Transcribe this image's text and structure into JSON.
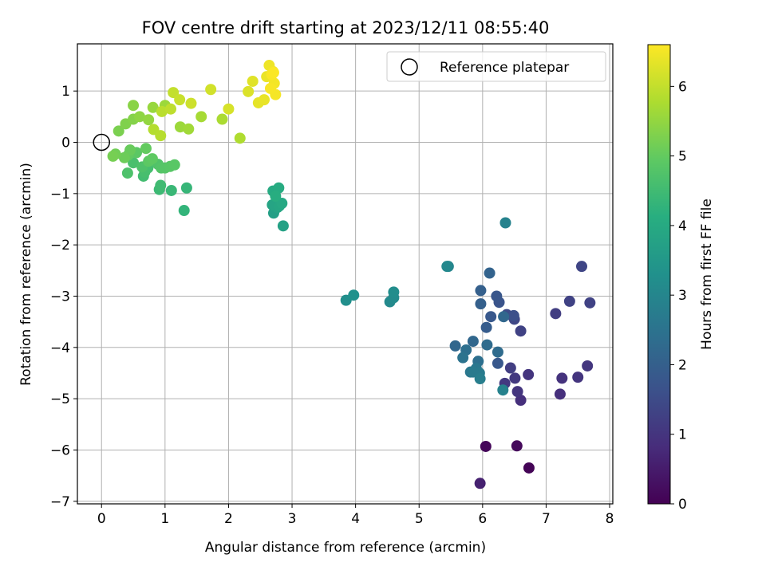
{
  "chart_data": {
    "type": "scatter",
    "title": "FOV centre drift starting at 2023/12/11 08:55:40",
    "xlabel": "Angular distance from reference (arcmin)",
    "ylabel": "Rotation from reference (arcmin)",
    "xlim": [
      -0.38,
      8.05
    ],
    "ylim": [
      -7.05,
      1.92
    ],
    "xticks": [
      0,
      1,
      2,
      3,
      4,
      5,
      6,
      7,
      8
    ],
    "yticks": [
      -7,
      -6,
      -5,
      -4,
      -3,
      -2,
      -1,
      0,
      1
    ],
    "xtick_labels": [
      "0",
      "1",
      "2",
      "3",
      "4",
      "5",
      "6",
      "7",
      "8"
    ],
    "ytick_labels": [
      "−7",
      "−6",
      "−5",
      "−4",
      "−3",
      "−2",
      "−1",
      "0",
      "1"
    ],
    "grid": true,
    "colormap": "viridis",
    "colorbar": {
      "label": "Hours from first FF file",
      "range": [
        0,
        6.6
      ],
      "ticks": [
        0,
        1,
        2,
        3,
        4,
        5,
        6
      ],
      "tick_labels": [
        "0",
        "1",
        "2",
        "3",
        "4",
        "5",
        "6"
      ]
    },
    "legend": {
      "position": "upper right",
      "entries": [
        {
          "label": "Reference platepar",
          "marker": "open-circle"
        }
      ]
    },
    "reference_point": {
      "x": 0,
      "y": 0
    },
    "points": [
      {
        "x": 6.73,
        "y": -6.35,
        "c": 0.05
      },
      {
        "x": 6.05,
        "y": -5.93,
        "c": 0.1
      },
      {
        "x": 6.54,
        "y": -5.92,
        "c": 0.15
      },
      {
        "x": 5.96,
        "y": -6.65,
        "c": 0.6
      },
      {
        "x": 7.22,
        "y": -4.91,
        "c": 0.9
      },
      {
        "x": 6.6,
        "y": -5.03,
        "c": 0.9
      },
      {
        "x": 6.55,
        "y": -4.86,
        "c": 1.0
      },
      {
        "x": 7.5,
        "y": -4.58,
        "c": 1.0
      },
      {
        "x": 7.25,
        "y": -4.6,
        "c": 0.95
      },
      {
        "x": 6.72,
        "y": -4.53,
        "c": 1.0
      },
      {
        "x": 7.65,
        "y": -4.36,
        "c": 1.05
      },
      {
        "x": 6.51,
        "y": -4.6,
        "c": 1.1
      },
      {
        "x": 6.35,
        "y": -4.7,
        "c": 1.1
      },
      {
        "x": 6.44,
        "y": -4.4,
        "c": 1.2
      },
      {
        "x": 6.6,
        "y": -3.68,
        "c": 1.3
      },
      {
        "x": 7.15,
        "y": -3.34,
        "c": 1.2
      },
      {
        "x": 7.37,
        "y": -3.1,
        "c": 1.3
      },
      {
        "x": 7.69,
        "y": -3.13,
        "c": 1.3
      },
      {
        "x": 7.56,
        "y": -2.42,
        "c": 1.35
      },
      {
        "x": 6.5,
        "y": -3.45,
        "c": 1.4
      },
      {
        "x": 6.38,
        "y": -3.36,
        "c": 1.5
      },
      {
        "x": 6.49,
        "y": -3.38,
        "c": 1.6
      },
      {
        "x": 6.26,
        "y": -3.12,
        "c": 1.7
      },
      {
        "x": 6.22,
        "y": -3.0,
        "c": 1.75
      },
      {
        "x": 6.13,
        "y": -3.4,
        "c": 1.8
      },
      {
        "x": 6.33,
        "y": -3.4,
        "c": 2.2
      },
      {
        "x": 6.24,
        "y": -4.31,
        "c": 1.8
      },
      {
        "x": 6.06,
        "y": -3.61,
        "c": 1.9
      },
      {
        "x": 5.97,
        "y": -3.15,
        "c": 2.0
      },
      {
        "x": 5.97,
        "y": -2.89,
        "c": 2.0
      },
      {
        "x": 6.11,
        "y": -2.55,
        "c": 2.1
      },
      {
        "x": 5.57,
        "y": -3.97,
        "c": 2.2
      },
      {
        "x": 5.85,
        "y": -3.88,
        "c": 2.2
      },
      {
        "x": 6.07,
        "y": -3.95,
        "c": 2.3
      },
      {
        "x": 6.24,
        "y": -4.09,
        "c": 2.3
      },
      {
        "x": 5.74,
        "y": -4.05,
        "c": 2.4
      },
      {
        "x": 5.93,
        "y": -4.27,
        "c": 2.4
      },
      {
        "x": 5.69,
        "y": -4.2,
        "c": 2.5
      },
      {
        "x": 5.81,
        "y": -4.48,
        "c": 2.6
      },
      {
        "x": 5.9,
        "y": -4.41,
        "c": 2.6
      },
      {
        "x": 5.95,
        "y": -4.5,
        "c": 2.7
      },
      {
        "x": 5.85,
        "y": -4.48,
        "c": 2.7
      },
      {
        "x": 5.96,
        "y": -4.61,
        "c": 2.8
      },
      {
        "x": 6.32,
        "y": -4.83,
        "c": 2.9
      },
      {
        "x": 6.36,
        "y": -1.57,
        "c": 2.9
      },
      {
        "x": 5.46,
        "y": -2.42,
        "c": 2.95
      },
      {
        "x": 5.44,
        "y": -2.42,
        "c": 3.05
      },
      {
        "x": 4.54,
        "y": -3.11,
        "c": 3.1
      },
      {
        "x": 4.6,
        "y": -3.03,
        "c": 3.15
      },
      {
        "x": 4.6,
        "y": -2.92,
        "c": 3.2
      },
      {
        "x": 3.85,
        "y": -3.08,
        "c": 3.25
      },
      {
        "x": 3.97,
        "y": -2.98,
        "c": 3.3
      },
      {
        "x": 2.71,
        "y": -1.38,
        "c": 3.7
      },
      {
        "x": 2.86,
        "y": -1.63,
        "c": 3.75
      },
      {
        "x": 2.77,
        "y": -1.27,
        "c": 3.8
      },
      {
        "x": 2.69,
        "y": -1.22,
        "c": 3.85
      },
      {
        "x": 2.8,
        "y": -1.24,
        "c": 3.9
      },
      {
        "x": 2.84,
        "y": -1.19,
        "c": 3.95
      },
      {
        "x": 2.7,
        "y": -0.95,
        "c": 4.0
      },
      {
        "x": 2.79,
        "y": -0.89,
        "c": 4.05
      },
      {
        "x": 2.74,
        "y": -1.05,
        "c": 4.1
      },
      {
        "x": 1.3,
        "y": -1.33,
        "c": 4.3
      },
      {
        "x": 1.34,
        "y": -0.89,
        "c": 4.35
      },
      {
        "x": 1.1,
        "y": -0.94,
        "c": 4.4
      },
      {
        "x": 0.91,
        "y": -0.92,
        "c": 4.45
      },
      {
        "x": 0.93,
        "y": -0.84,
        "c": 4.5
      },
      {
        "x": 0.66,
        "y": -0.66,
        "c": 4.55
      },
      {
        "x": 0.73,
        "y": -0.5,
        "c": 4.6
      },
      {
        "x": 0.68,
        "y": -0.58,
        "c": 4.62
      },
      {
        "x": 0.5,
        "y": -0.4,
        "c": 4.65
      },
      {
        "x": 0.41,
        "y": -0.6,
        "c": 4.7
      },
      {
        "x": 0.64,
        "y": -0.48,
        "c": 4.72
      },
      {
        "x": 0.89,
        "y": -0.43,
        "c": 4.75
      },
      {
        "x": 0.94,
        "y": -0.5,
        "c": 4.8
      },
      {
        "x": 1.0,
        "y": -0.5,
        "c": 4.82
      },
      {
        "x": 1.08,
        "y": -0.47,
        "c": 4.85
      },
      {
        "x": 1.15,
        "y": -0.44,
        "c": 4.88
      },
      {
        "x": 0.55,
        "y": -0.2,
        "c": 4.9
      },
      {
        "x": 0.74,
        "y": -0.37,
        "c": 4.92
      },
      {
        "x": 0.8,
        "y": -0.32,
        "c": 4.95
      },
      {
        "x": 0.42,
        "y": -0.25,
        "c": 4.97
      },
      {
        "x": 0.7,
        "y": -0.12,
        "c": 5.0
      },
      {
        "x": 0.45,
        "y": -0.15,
        "c": 5.05
      },
      {
        "x": 0.36,
        "y": -0.3,
        "c": 5.1
      },
      {
        "x": 0.22,
        "y": -0.23,
        "c": 5.15
      },
      {
        "x": 0.18,
        "y": -0.27,
        "c": 5.2
      },
      {
        "x": 0.27,
        "y": 0.22,
        "c": 5.25
      },
      {
        "x": 0.38,
        "y": 0.36,
        "c": 5.3
      },
      {
        "x": 0.5,
        "y": 0.45,
        "c": 5.35
      },
      {
        "x": 0.5,
        "y": 0.72,
        "c": 5.4
      },
      {
        "x": 0.6,
        "y": 0.5,
        "c": 5.45
      },
      {
        "x": 0.74,
        "y": 0.44,
        "c": 5.5
      },
      {
        "x": 0.81,
        "y": 0.68,
        "c": 5.55
      },
      {
        "x": 1.0,
        "y": 0.72,
        "c": 5.6
      },
      {
        "x": 1.24,
        "y": 0.3,
        "c": 5.6
      },
      {
        "x": 1.37,
        "y": 0.26,
        "c": 5.65
      },
      {
        "x": 1.57,
        "y": 0.5,
        "c": 5.7
      },
      {
        "x": 1.9,
        "y": 0.45,
        "c": 5.75
      },
      {
        "x": 2.18,
        "y": 0.08,
        "c": 5.8
      },
      {
        "x": 0.82,
        "y": 0.25,
        "c": 5.85
      },
      {
        "x": 0.93,
        "y": 0.13,
        "c": 5.88
      },
      {
        "x": 0.95,
        "y": 0.6,
        "c": 5.9
      },
      {
        "x": 1.09,
        "y": 0.65,
        "c": 5.95
      },
      {
        "x": 1.13,
        "y": 0.97,
        "c": 6.0
      },
      {
        "x": 1.23,
        "y": 0.83,
        "c": 6.05
      },
      {
        "x": 1.41,
        "y": 0.76,
        "c": 6.1
      },
      {
        "x": 1.72,
        "y": 1.03,
        "c": 6.15
      },
      {
        "x": 2.0,
        "y": 0.65,
        "c": 6.2
      },
      {
        "x": 2.31,
        "y": 0.99,
        "c": 6.25
      },
      {
        "x": 2.38,
        "y": 1.19,
        "c": 6.3
      },
      {
        "x": 2.47,
        "y": 0.77,
        "c": 6.35
      },
      {
        "x": 2.56,
        "y": 0.83,
        "c": 6.38
      },
      {
        "x": 2.6,
        "y": 1.28,
        "c": 6.4
      },
      {
        "x": 2.64,
        "y": 1.5,
        "c": 6.45
      },
      {
        "x": 2.7,
        "y": 1.38,
        "c": 6.48
      },
      {
        "x": 2.72,
        "y": 1.15,
        "c": 6.5
      },
      {
        "x": 2.74,
        "y": 0.93,
        "c": 6.52
      },
      {
        "x": 2.66,
        "y": 1.05,
        "c": 6.54
      },
      {
        "x": 2.68,
        "y": 1.32,
        "c": 6.56
      },
      {
        "x": 2.71,
        "y": 1.36,
        "c": 6.58
      }
    ]
  }
}
